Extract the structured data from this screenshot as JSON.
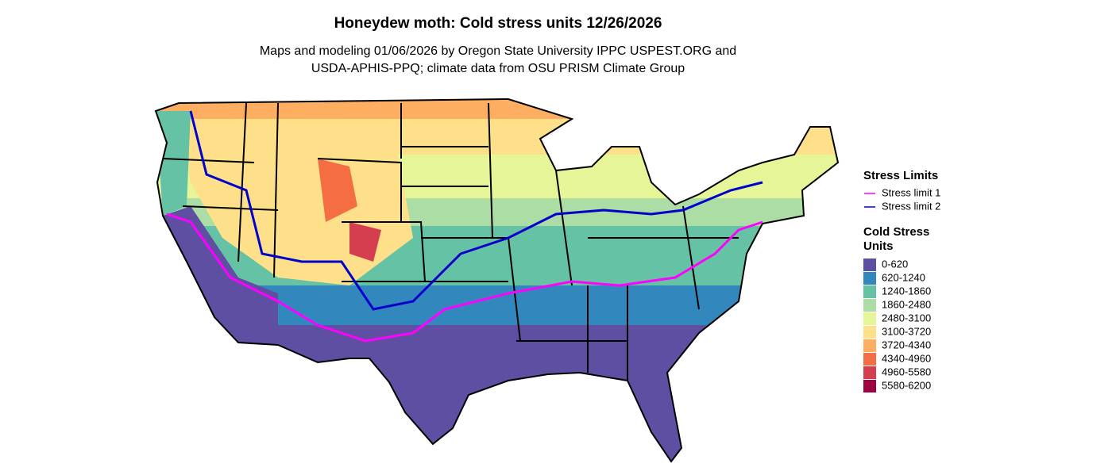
{
  "title": "Honeydew moth: Cold stress units 12/26/2026",
  "subtitle": [
    "Maps and modeling 01/06/2026 by Oregon State University IPPC USPEST.ORG and",
    "USDA-APHIS-PPQ; climate data from OSU PRISM Climate Group"
  ],
  "legend": {
    "stress_limits": {
      "title": "Stress Limits",
      "items": [
        {
          "label": "Stress limit 1",
          "color": "#ff00ff"
        },
        {
          "label": "Stress limit 2",
          "color": "#0000cd"
        }
      ]
    },
    "cold_stress_units": {
      "title": [
        "Cold Stress",
        "Units"
      ],
      "items": [
        {
          "label": "0-620",
          "color": "#5e4fa2"
        },
        {
          "label": "620-1240",
          "color": "#3288bd"
        },
        {
          "label": "1240-1860",
          "color": "#66c2a5"
        },
        {
          "label": "1860-2480",
          "color": "#abdda4"
        },
        {
          "label": "2480-3100",
          "color": "#e6f598"
        },
        {
          "label": "3100-3720",
          "color": "#fee08b"
        },
        {
          "label": "3720-4340",
          "color": "#fdae61"
        },
        {
          "label": "4340-4960",
          "color": "#f46d43"
        },
        {
          "label": "4960-5580",
          "color": "#d53e4f"
        },
        {
          "label": "5580-6200",
          "color": "#9e0142"
        }
      ]
    }
  }
}
